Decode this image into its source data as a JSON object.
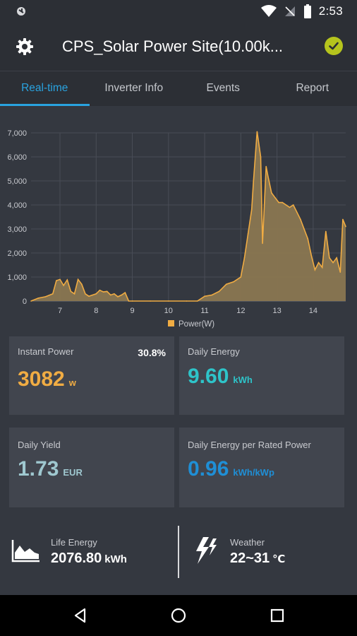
{
  "status_bar": {
    "time": "2:53"
  },
  "header": {
    "title": "CPS_Solar Power Site(10.00k..."
  },
  "tabs": [
    {
      "label": "Real-time",
      "active": true
    },
    {
      "label": "Inverter Info",
      "active": false
    },
    {
      "label": "Events",
      "active": false
    },
    {
      "label": "Report",
      "active": false
    }
  ],
  "chart_data": {
    "type": "area",
    "title": "",
    "xlabel": "",
    "ylabel": "",
    "ylim": [
      0,
      7000
    ],
    "xlim": [
      6.2,
      14.9
    ],
    "y_ticks": [
      "0",
      "1,000",
      "2,000",
      "3,000",
      "4,000",
      "5,000",
      "6,000",
      "7,000"
    ],
    "x_ticks": [
      "7",
      "8",
      "9",
      "10",
      "11",
      "12",
      "13",
      "14"
    ],
    "legend": "bottom-center",
    "grid": true,
    "series": [
      {
        "name": "Power(W)",
        "color": "#f0ac43",
        "x": [
          6.2,
          6.4,
          6.6,
          6.8,
          6.9,
          7.0,
          7.1,
          7.2,
          7.3,
          7.4,
          7.5,
          7.6,
          7.7,
          7.8,
          7.9,
          8.0,
          8.1,
          8.2,
          8.3,
          8.4,
          8.5,
          8.6,
          8.7,
          8.8,
          8.9,
          9.0,
          9.5,
          10.0,
          10.5,
          10.8,
          11.0,
          11.2,
          11.4,
          11.6,
          11.8,
          12.0,
          12.1,
          12.2,
          12.3,
          12.35,
          12.45,
          12.55,
          12.6,
          12.7,
          12.75,
          12.85,
          12.95,
          13.05,
          13.15,
          13.25,
          13.35,
          13.45,
          13.55,
          13.65,
          13.75,
          13.85,
          13.95,
          14.05,
          14.15,
          14.25,
          14.35,
          14.45,
          14.55,
          14.65,
          14.75,
          14.82,
          14.9
        ],
        "values": [
          0,
          120,
          180,
          300,
          850,
          900,
          650,
          880,
          400,
          300,
          900,
          700,
          300,
          200,
          250,
          300,
          450,
          380,
          400,
          250,
          300,
          180,
          250,
          350,
          0,
          0,
          0,
          0,
          0,
          0,
          200,
          250,
          400,
          700,
          800,
          1000,
          1800,
          2800,
          3800,
          5000,
          7050,
          6000,
          2400,
          5600,
          5200,
          4500,
          4300,
          4100,
          4100,
          4000,
          3900,
          4000,
          3700,
          3400,
          3000,
          2600,
          1900,
          1300,
          1600,
          1400,
          2900,
          1800,
          1600,
          1800,
          1200,
          3400,
          3100
        ]
      }
    ]
  },
  "cards": {
    "instant_power": {
      "label": "Instant Power",
      "value": "3082",
      "unit": "w",
      "percent": "30.8%",
      "color": "#f0ac43"
    },
    "daily_energy": {
      "label": "Daily Energy",
      "value": "9.60",
      "unit": "kWh",
      "color": "#2ec4c9"
    },
    "daily_yield": {
      "label": "Daily Yield",
      "value": "1.73",
      "unit": "EUR",
      "color": "#9fc8d0"
    },
    "daily_energy_rated": {
      "label": "Daily Energy per Rated Power",
      "value": "0.96",
      "unit": "kWh/kWp",
      "color": "#1f8fd6"
    }
  },
  "bottom": {
    "life_energy": {
      "label": "Life Energy",
      "value": "2076.80",
      "unit": "kWh",
      "icon": "area-chart-icon"
    },
    "weather": {
      "label": "Weather",
      "value": "22~31",
      "unit": "℃",
      "icon": "lightning-icon"
    }
  }
}
